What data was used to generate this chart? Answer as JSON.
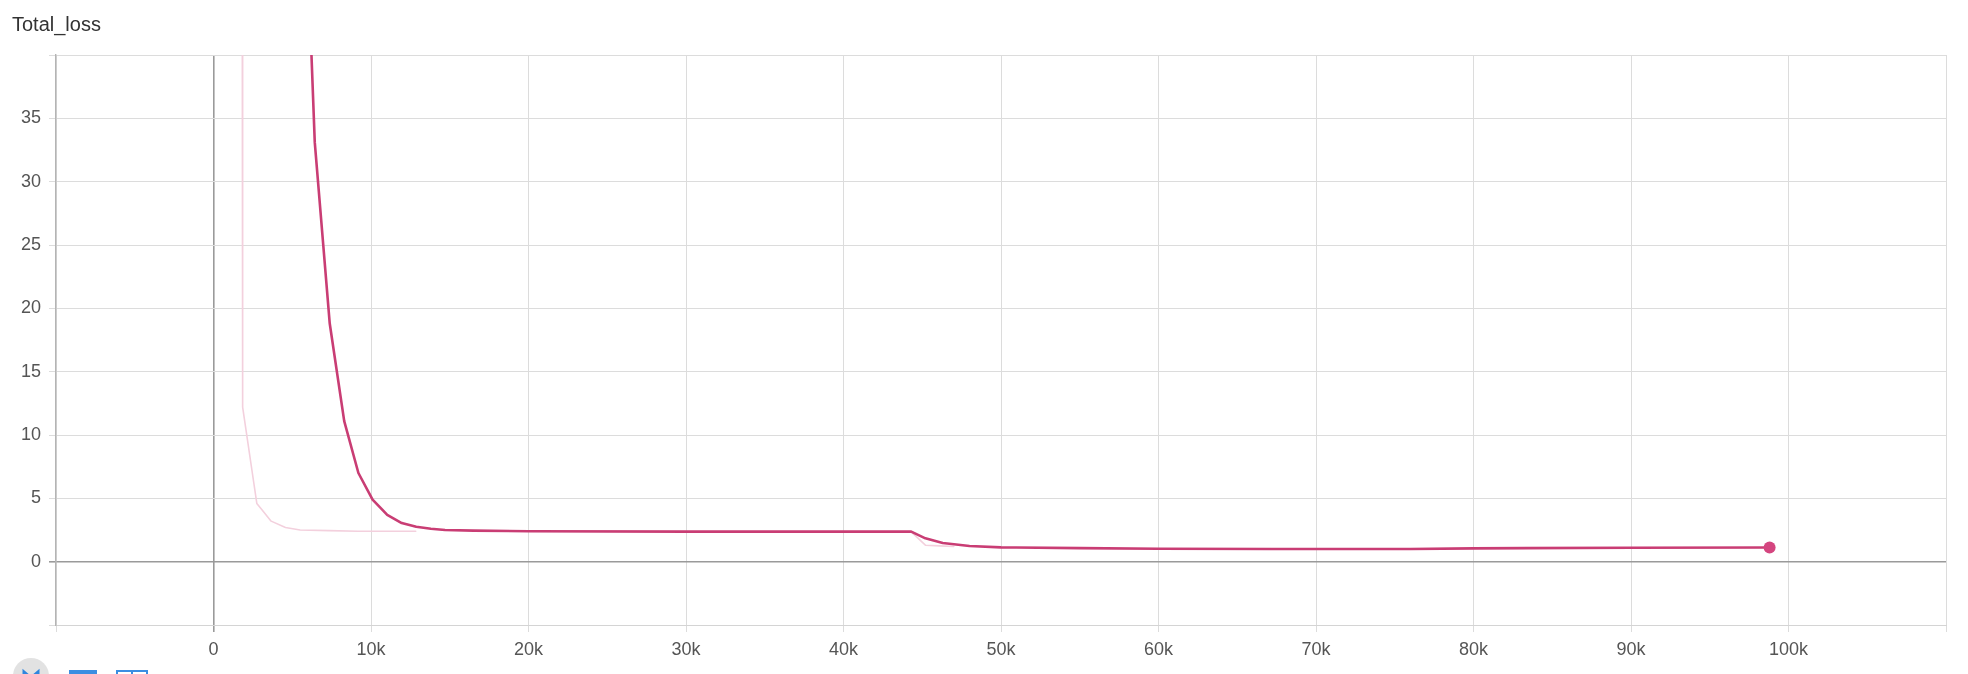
{
  "chart_data": {
    "type": "line",
    "title": "Total_loss",
    "xlim": [
      -10000,
      110000
    ],
    "xticks": [
      {
        "value": -10000,
        "label": null
      },
      0,
      {
        "value": 10000,
        "label": "10k"
      },
      {
        "value": 20000,
        "label": "20k"
      },
      {
        "value": 30000,
        "label": "30k"
      },
      {
        "value": 40000,
        "label": "40k"
      },
      {
        "value": 50000,
        "label": "50k"
      },
      {
        "value": 60000,
        "label": "60k"
      },
      {
        "value": 70000,
        "label": "70k"
      },
      {
        "value": 80000,
        "label": "80k"
      },
      {
        "value": 90000,
        "label": "90k"
      },
      {
        "value": 100000,
        "label": "100k"
      },
      {
        "value": 110000,
        "label": null
      }
    ],
    "ylim": [
      -5,
      40
    ],
    "yticks": [
      {
        "value": -5,
        "label": null
      },
      0,
      5,
      10,
      15,
      20,
      25,
      30,
      35,
      {
        "value": 40,
        "label": null
      }
    ],
    "grid": true,
    "series": [
      {
        "color": "#f3d0dd",
        "x": [
          1830,
          1850,
          2750,
          3660,
          4570,
          5500,
          7340,
          9170,
          11000,
          12840,
          30000,
          44300,
          45200,
          46100,
          47000
        ],
        "values": [
          40,
          12.2,
          4.6,
          3.2,
          2.7,
          2.5,
          2.45,
          2.4,
          2.4,
          2.4,
          null,
          2.35,
          1.3,
          1.25,
          1.2
        ]
      },
      {
        "color": "#c93d74",
        "x": [
          6220,
          6430,
          7380,
          8300,
          9200,
          10100,
          11030,
          11950,
          12870,
          13800,
          14700,
          16500,
          20000,
          30000,
          44300,
          45200,
          46300,
          48000,
          50000,
          55000,
          60000,
          70000,
          76000,
          80000,
          90000,
          98800
        ],
        "values": [
          40,
          33.1,
          18.8,
          11.1,
          7.0,
          4.9,
          3.7,
          3.05,
          2.75,
          2.6,
          2.5,
          2.45,
          2.4,
          2.37,
          2.37,
          1.84,
          1.48,
          1.24,
          1.13,
          1.07,
          1.02,
          1.0,
          1.0,
          1.05,
          1.1,
          1.12
        ]
      },
      {
        "type": "scatter",
        "marker": "circle",
        "color": "#d4457f",
        "x": [
          98800
        ],
        "values": [
          1.12
        ]
      }
    ]
  }
}
